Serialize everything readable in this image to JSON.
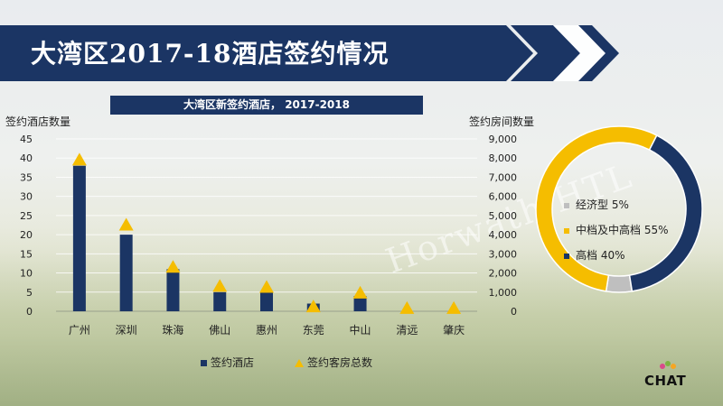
{
  "title": "大湾区2017-18酒店签约情况",
  "subtitle": "大湾区新签约酒店， 2017-2018",
  "left_axis_title": "签约酒店数量",
  "right_axis_title": "签约房间数量",
  "colors": {
    "navy": "#1b3564",
    "gold": "#f5bd00",
    "gray": "#bfbfbf",
    "banner": "#1b3564"
  },
  "watermark": "Horwath HTL",
  "logo_text": "CHAT",
  "chart_data": [
    {
      "type": "bar",
      "categories": [
        "广州",
        "深圳",
        "珠海",
        "佛山",
        "惠州",
        "东莞",
        "中山",
        "清远",
        "肇庆"
      ],
      "series": [
        {
          "name": "签约酒店",
          "axis": "left",
          "mark": "bar",
          "values": [
            38,
            20,
            11,
            5,
            5,
            2,
            4,
            0,
            0
          ]
        },
        {
          "name": "签约客房总数",
          "axis": "right",
          "mark": "triangle",
          "values": [
            7900,
            4500,
            2300,
            1300,
            1250,
            230,
            950,
            150,
            150
          ]
        }
      ],
      "y_left": {
        "min": 0,
        "max": 45,
        "ticks": [
          "0",
          "5",
          "10",
          "15",
          "20",
          "25",
          "30",
          "35",
          "40",
          "45"
        ]
      },
      "y_right": {
        "min": 0,
        "max": 9000,
        "ticks": [
          "0",
          "1,000",
          "2,000",
          "3,000",
          "4,000",
          "5,000",
          "6,000",
          "7,000",
          "8,000",
          "9,000"
        ]
      },
      "legend": [
        {
          "label": "签约酒店",
          "color": "#1b3564",
          "marker": "square"
        },
        {
          "label": "签约客房总数",
          "color": "#f5bd00",
          "marker": "triangle"
        }
      ]
    },
    {
      "type": "pie",
      "style": "donut",
      "slices": [
        {
          "label": "经济型 5%",
          "value": 5,
          "color": "#bfbfbf"
        },
        {
          "label": "中档及中高档 55%",
          "value": 55,
          "color": "#f5bd00"
        },
        {
          "label": "高档 40%",
          "value": 40,
          "color": "#1b3564"
        }
      ]
    }
  ]
}
